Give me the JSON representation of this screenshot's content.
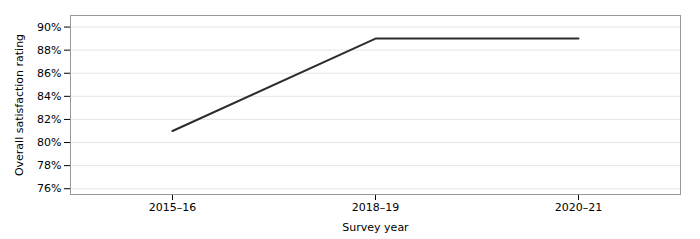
{
  "chart_data": {
    "type": "line",
    "categories": [
      "2015–16",
      "2018–19",
      "2020–21"
    ],
    "values": [
      81,
      89,
      89
    ],
    "color": "#2d2d2d",
    "xlabel": "Survey year",
    "ylabel": "Overall satisfaction rating",
    "ylim": [
      75.5,
      91
    ],
    "yticks": [
      {
        "value": 76,
        "label": "76%"
      },
      {
        "value": 78,
        "label": "78%"
      },
      {
        "value": 80,
        "label": "80%"
      },
      {
        "value": 82,
        "label": "82%"
      },
      {
        "value": 84,
        "label": "84%"
      },
      {
        "value": 86,
        "label": "86%"
      },
      {
        "value": 88,
        "label": "88%"
      },
      {
        "value": 90,
        "label": "90%"
      }
    ],
    "grid": true
  }
}
